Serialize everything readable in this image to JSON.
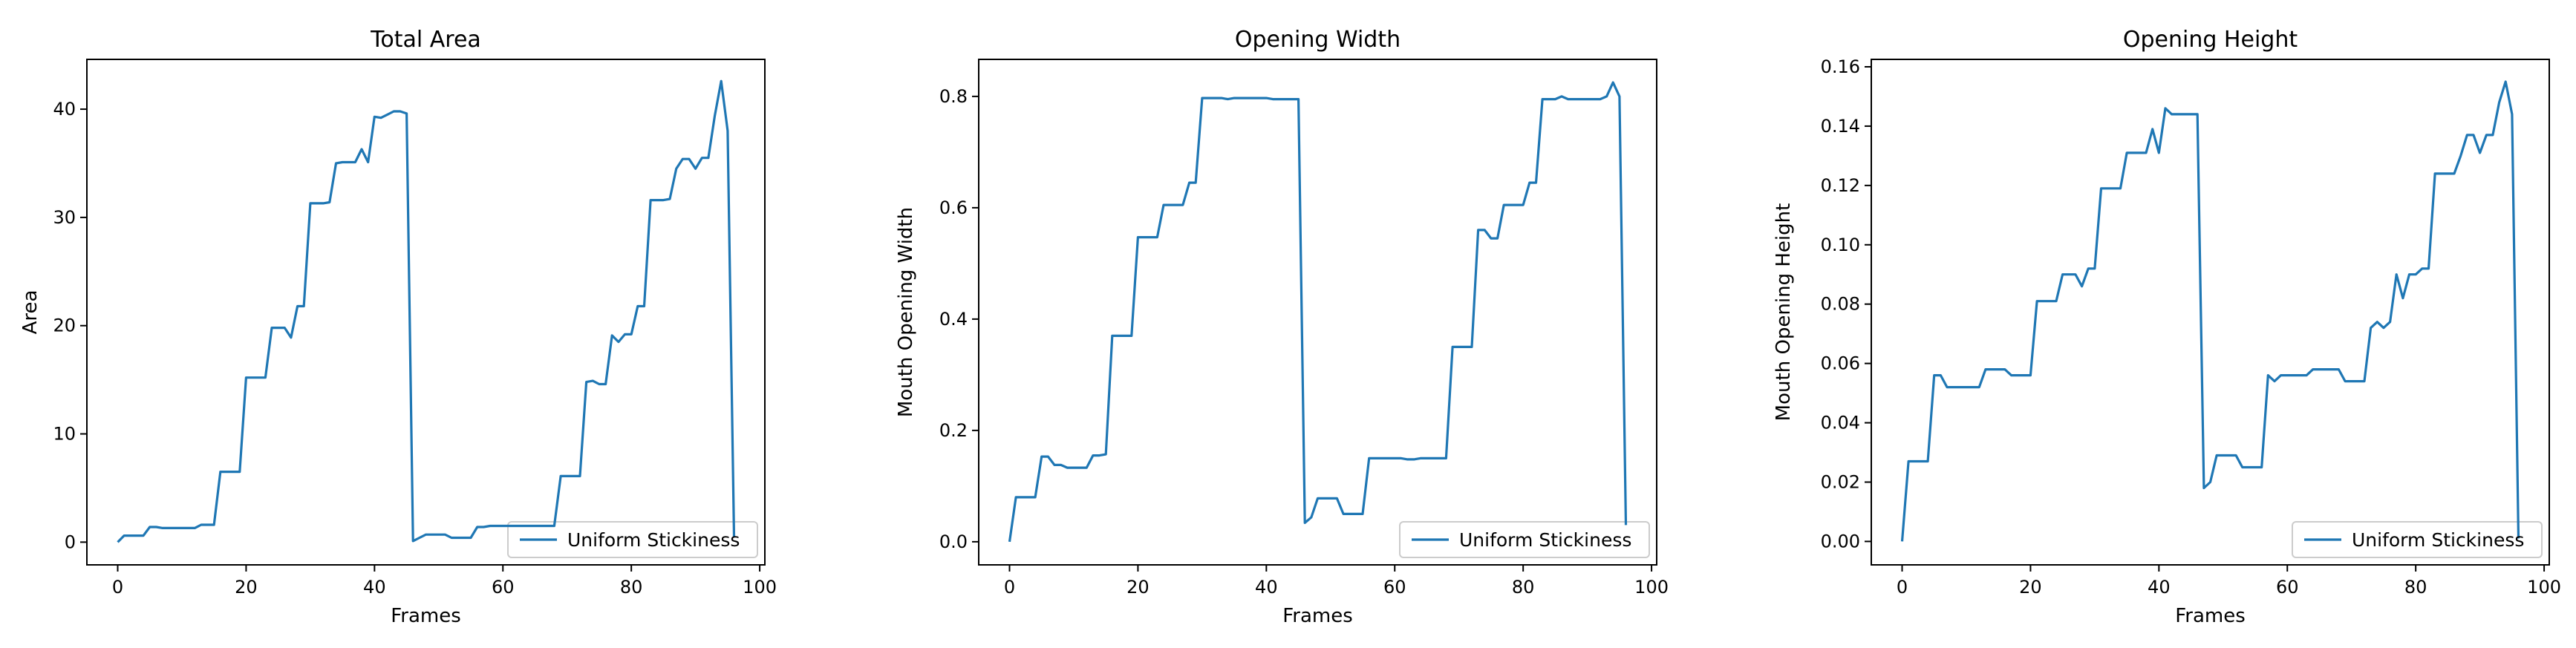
{
  "colors": {
    "series": "#1f77b4",
    "axes": "#000000",
    "legend_border": "#cccccc"
  },
  "chart_data": [
    {
      "type": "line",
      "title": "Total Area",
      "xlabel": "Frames",
      "ylabel": "Area",
      "xlim": [
        -4.8,
        100.8
      ],
      "ylim": [
        -2.1,
        44.6
      ],
      "xticks": [
        0,
        20,
        40,
        60,
        80,
        100
      ],
      "yticks": [
        0,
        10,
        20,
        30,
        40
      ],
      "grid": false,
      "legend_position": "lower right",
      "series": [
        {
          "name": "Uniform Stickiness",
          "x": [
            0,
            1,
            2,
            3,
            4,
            5,
            6,
            7,
            8,
            9,
            10,
            11,
            12,
            13,
            14,
            15,
            16,
            17,
            18,
            19,
            20,
            21,
            22,
            23,
            24,
            25,
            26,
            27,
            28,
            29,
            30,
            31,
            32,
            33,
            34,
            35,
            36,
            37,
            38,
            39,
            40,
            41,
            42,
            43,
            44,
            45,
            46,
            47,
            48,
            49,
            50,
            51,
            52,
            53,
            54,
            55,
            56,
            57,
            58,
            59,
            60,
            61,
            62,
            63,
            64,
            65,
            66,
            67,
            68,
            69,
            70,
            71,
            72,
            73,
            74,
            75,
            76,
            77,
            78,
            79,
            80,
            81,
            82,
            83,
            84,
            85,
            86,
            87,
            88,
            89,
            90,
            91,
            92,
            93,
            94,
            95,
            96
          ],
          "y": [
            0,
            0.6,
            0.6,
            0.6,
            0.6,
            1.4,
            1.4,
            1.3,
            1.3,
            1.3,
            1.3,
            1.3,
            1.3,
            1.6,
            1.6,
            1.6,
            6.5,
            6.5,
            6.5,
            6.5,
            15.2,
            15.2,
            15.2,
            15.2,
            19.8,
            19.8,
            19.8,
            18.9,
            21.8,
            21.8,
            31.3,
            31.3,
            31.3,
            31.4,
            35.0,
            35.1,
            35.1,
            35.1,
            36.3,
            35.1,
            39.3,
            39.2,
            39.5,
            39.8,
            39.8,
            39.6,
            0.1,
            0.4,
            0.7,
            0.7,
            0.7,
            0.7,
            0.4,
            0.4,
            0.4,
            0.4,
            1.4,
            1.4,
            1.5,
            1.5,
            1.5,
            1.5,
            1.5,
            1.5,
            1.5,
            1.5,
            1.5,
            1.5,
            1.5,
            6.1,
            6.1,
            6.1,
            6.1,
            14.8,
            14.9,
            14.6,
            14.6,
            19.1,
            18.5,
            19.2,
            19.2,
            21.8,
            21.8,
            31.6,
            31.6,
            31.6,
            31.7,
            34.5,
            35.4,
            35.4,
            34.5,
            35.5,
            35.5,
            39.4,
            42.6,
            38.0,
            0.5
          ]
        }
      ]
    },
    {
      "type": "line",
      "title": "Opening Width",
      "xlabel": "Frames",
      "ylabel": "Mouth Opening Width",
      "xlim": [
        -4.8,
        100.8
      ],
      "ylim": [
        -0.0415,
        0.8665
      ],
      "xticks": [
        0,
        20,
        40,
        60,
        80,
        100
      ],
      "yticks": [
        0.0,
        0.2,
        0.4,
        0.6,
        0.8
      ],
      "grid": false,
      "legend_position": "lower right",
      "series": [
        {
          "name": "Uniform Stickiness",
          "x": [
            0,
            1,
            2,
            3,
            4,
            5,
            6,
            7,
            8,
            9,
            10,
            11,
            12,
            13,
            14,
            15,
            16,
            17,
            18,
            19,
            20,
            21,
            22,
            23,
            24,
            25,
            26,
            27,
            28,
            29,
            30,
            31,
            32,
            33,
            34,
            35,
            36,
            37,
            38,
            39,
            40,
            41,
            42,
            43,
            44,
            45,
            46,
            47,
            48,
            49,
            50,
            51,
            52,
            53,
            54,
            55,
            56,
            57,
            58,
            59,
            60,
            61,
            62,
            63,
            64,
            65,
            66,
            67,
            68,
            69,
            70,
            71,
            72,
            73,
            74,
            75,
            76,
            77,
            78,
            79,
            80,
            81,
            82,
            83,
            84,
            85,
            86,
            87,
            88,
            89,
            90,
            91,
            92,
            93,
            94,
            95,
            96
          ],
          "y": [
            0,
            0.08,
            0.08,
            0.08,
            0.08,
            0.153,
            0.153,
            0.138,
            0.138,
            0.133,
            0.133,
            0.133,
            0.133,
            0.155,
            0.155,
            0.157,
            0.37,
            0.37,
            0.37,
            0.37,
            0.547,
            0.547,
            0.547,
            0.547,
            0.605,
            0.605,
            0.605,
            0.605,
            0.645,
            0.645,
            0.797,
            0.797,
            0.797,
            0.797,
            0.795,
            0.797,
            0.797,
            0.797,
            0.797,
            0.797,
            0.797,
            0.795,
            0.795,
            0.795,
            0.795,
            0.795,
            0.034,
            0.044,
            0.078,
            0.078,
            0.078,
            0.078,
            0.05,
            0.05,
            0.05,
            0.05,
            0.15,
            0.15,
            0.15,
            0.15,
            0.15,
            0.15,
            0.148,
            0.148,
            0.15,
            0.15,
            0.15,
            0.15,
            0.15,
            0.35,
            0.35,
            0.35,
            0.35,
            0.56,
            0.56,
            0.545,
            0.545,
            0.605,
            0.605,
            0.605,
            0.605,
            0.645,
            0.645,
            0.795,
            0.795,
            0.795,
            0.8,
            0.795,
            0.795,
            0.795,
            0.795,
            0.795,
            0.795,
            0.8,
            0.825,
            0.8,
            0.03
          ]
        }
      ]
    },
    {
      "type": "line",
      "title": "Opening Height",
      "xlabel": "Frames",
      "ylabel": "Mouth Opening Height",
      "xlim": [
        -4.8,
        100.8
      ],
      "ylim": [
        -0.0079,
        0.1625
      ],
      "xticks": [
        0,
        20,
        40,
        60,
        80,
        100
      ],
      "yticks": [
        0.0,
        0.02,
        0.04,
        0.06,
        0.08,
        0.1,
        0.12,
        0.14,
        0.16
      ],
      "grid": false,
      "legend_position": "lower right",
      "series": [
        {
          "name": "Uniform Stickiness",
          "x": [
            0,
            1,
            2,
            3,
            4,
            5,
            6,
            7,
            8,
            9,
            10,
            11,
            12,
            13,
            14,
            15,
            16,
            17,
            18,
            19,
            20,
            21,
            22,
            23,
            24,
            25,
            26,
            27,
            28,
            29,
            30,
            31,
            32,
            33,
            34,
            35,
            36,
            37,
            38,
            39,
            40,
            41,
            42,
            43,
            44,
            45,
            46,
            47,
            48,
            49,
            50,
            51,
            52,
            53,
            54,
            55,
            56,
            57,
            58,
            59,
            60,
            61,
            62,
            63,
            64,
            65,
            66,
            67,
            68,
            69,
            70,
            71,
            72,
            73,
            74,
            75,
            76,
            77,
            78,
            79,
            80,
            81,
            82,
            83,
            84,
            85,
            86,
            87,
            88,
            89,
            90,
            91,
            92,
            93,
            94,
            95,
            96
          ],
          "y": [
            0,
            0.027,
            0.027,
            0.027,
            0.027,
            0.056,
            0.056,
            0.052,
            0.052,
            0.052,
            0.052,
            0.052,
            0.052,
            0.058,
            0.058,
            0.058,
            0.058,
            0.056,
            0.056,
            0.056,
            0.056,
            0.081,
            0.081,
            0.081,
            0.081,
            0.09,
            0.09,
            0.09,
            0.086,
            0.092,
            0.092,
            0.119,
            0.119,
            0.119,
            0.119,
            0.131,
            0.131,
            0.131,
            0.131,
            0.139,
            0.131,
            0.146,
            0.144,
            0.144,
            0.144,
            0.144,
            0.144,
            0.018,
            0.02,
            0.029,
            0.029,
            0.029,
            0.029,
            0.025,
            0.025,
            0.025,
            0.025,
            0.056,
            0.054,
            0.056,
            0.056,
            0.056,
            0.056,
            0.056,
            0.058,
            0.058,
            0.058,
            0.058,
            0.058,
            0.054,
            0.054,
            0.054,
            0.054,
            0.072,
            0.074,
            0.072,
            0.074,
            0.09,
            0.082,
            0.09,
            0.09,
            0.092,
            0.092,
            0.124,
            0.124,
            0.124,
            0.124,
            0.13,
            0.137,
            0.137,
            0.131,
            0.137,
            0.137,
            0.148,
            0.155,
            0.144,
            0.001
          ]
        }
      ]
    }
  ]
}
